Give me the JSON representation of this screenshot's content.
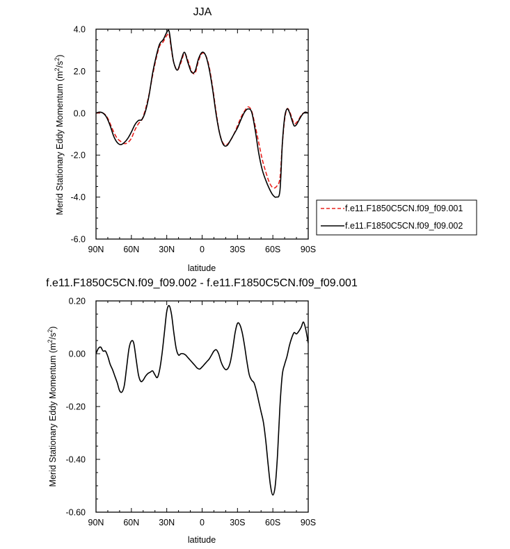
{
  "chart_data": [
    {
      "type": "line",
      "title": "JJA",
      "xlabel": "latitude",
      "ylabel": "Merid Stationary Eddy Momentum (m²/s²)",
      "xlim": [
        90,
        -90
      ],
      "ylim": [
        -6.0,
        4.0
      ],
      "x_ticks": [
        90,
        60,
        30,
        0,
        -30,
        -60,
        -90
      ],
      "x_tick_labels": [
        "90N",
        "60N",
        "30N",
        "0",
        "30S",
        "60S",
        "90S"
      ],
      "y_ticks": [
        4.0,
        2.0,
        0.0,
        -2.0,
        -4.0,
        -6.0
      ],
      "y_tick_labels": [
        "4.0",
        "2.0",
        "0.0",
        "-2.0",
        "-4.0",
        "-6.0"
      ],
      "legend_position": "outside-right",
      "series": [
        {
          "name": "f.e11.F1850C5CN.f09_f09.001",
          "color": "#e8221f",
          "dash": "dashed",
          "x": [
            90,
            87,
            84,
            81,
            78,
            75,
            72,
            69,
            66,
            63,
            60,
            57,
            54,
            51,
            48,
            45,
            42,
            39,
            36,
            33,
            30,
            28,
            26,
            24,
            21,
            18,
            15,
            12,
            9,
            6,
            3,
            0,
            -3,
            -6,
            -9,
            -12,
            -15,
            -18,
            -21,
            -24,
            -27,
            -30,
            -33,
            -36,
            -39,
            -42,
            -45,
            -48,
            -51,
            -54,
            -57,
            -60,
            -63,
            -66,
            -68,
            -70,
            -72,
            -74,
            -76,
            -78,
            -80,
            -82,
            -84,
            -86,
            -88,
            -90
          ],
          "y": [
            0.0,
            0.02,
            0.0,
            -0.15,
            -0.5,
            -0.9,
            -1.2,
            -1.35,
            -1.45,
            -1.4,
            -1.2,
            -0.8,
            -0.5,
            -0.3,
            0.2,
            0.9,
            1.8,
            2.6,
            3.2,
            3.4,
            3.7,
            3.75,
            3.0,
            2.4,
            2.05,
            2.4,
            2.85,
            2.5,
            2.0,
            1.9,
            2.5,
            2.85,
            2.75,
            2.2,
            1.2,
            0.0,
            -1.0,
            -1.45,
            -1.5,
            -1.3,
            -1.0,
            -0.6,
            -0.2,
            0.1,
            0.3,
            0.1,
            -0.6,
            -1.4,
            -2.2,
            -2.8,
            -3.3,
            -3.55,
            -3.5,
            -3.1,
            -1.5,
            -0.3,
            0.2,
            0.1,
            -0.2,
            -0.5,
            -0.45,
            -0.3,
            -0.1,
            0.0,
            0.05,
            0.05
          ]
        },
        {
          "name": "f.e11.F1850C5CN.f09_f09.002",
          "color": "#000000",
          "dash": "solid",
          "x": [
            90,
            87,
            84,
            81,
            78,
            75,
            72,
            69,
            66,
            63,
            60,
            57,
            54,
            51,
            48,
            45,
            42,
            39,
            36,
            33,
            30,
            28,
            26,
            24,
            21,
            18,
            15,
            12,
            9,
            6,
            3,
            0,
            -3,
            -6,
            -9,
            -12,
            -15,
            -18,
            -21,
            -24,
            -27,
            -30,
            -33,
            -36,
            -39,
            -42,
            -45,
            -48,
            -51,
            -54,
            -57,
            -60,
            -63,
            -66,
            -68,
            -70,
            -72,
            -74,
            -76,
            -78,
            -80,
            -82,
            -84,
            -86,
            -88,
            -90
          ],
          "y": [
            0.0,
            0.05,
            0.0,
            -0.2,
            -0.6,
            -1.1,
            -1.4,
            -1.5,
            -1.4,
            -1.2,
            -0.9,
            -0.55,
            -0.35,
            -0.3,
            0.1,
            0.85,
            1.9,
            2.7,
            3.3,
            3.5,
            3.85,
            3.9,
            3.1,
            2.4,
            2.05,
            2.5,
            2.9,
            2.4,
            1.95,
            2.0,
            2.6,
            2.9,
            2.75,
            2.1,
            1.1,
            -0.1,
            -1.0,
            -1.5,
            -1.55,
            -1.3,
            -1.0,
            -0.7,
            -0.3,
            0.05,
            0.2,
            0.05,
            -0.8,
            -1.9,
            -2.7,
            -3.2,
            -3.6,
            -3.9,
            -4.0,
            -3.7,
            -1.5,
            -0.2,
            0.2,
            0.05,
            -0.3,
            -0.6,
            -0.55,
            -0.35,
            -0.15,
            0.0,
            0.05,
            0.0
          ]
        }
      ]
    },
    {
      "type": "line",
      "title": "f.e11.F1850C5CN.f09_f09.002 - f.e11.F1850C5CN.f09_f09.001",
      "xlabel": "latitude",
      "ylabel": "Merid Stationary Eddy Momentum (m²/s²)",
      "xlim": [
        90,
        -90
      ],
      "ylim": [
        -0.6,
        0.2
      ],
      "x_ticks": [
        90,
        60,
        30,
        0,
        -30,
        -60,
        -90
      ],
      "x_tick_labels": [
        "90N",
        "60N",
        "30N",
        "0",
        "30S",
        "60S",
        "90S"
      ],
      "y_ticks": [
        0.2,
        0.0,
        -0.2,
        -0.4,
        -0.6
      ],
      "y_tick_labels": [
        "0.20",
        "0.00",
        "-0.20",
        "-0.40",
        "-0.60"
      ],
      "series": [
        {
          "color": "#000000",
          "dash": "solid",
          "x": [
            90,
            88,
            86,
            84,
            82,
            80,
            78,
            76,
            74,
            72,
            70,
            68,
            66,
            64,
            62,
            60,
            58,
            56,
            54,
            52,
            50,
            48,
            46,
            44,
            42,
            40,
            38,
            36,
            34,
            32,
            30,
            28,
            26,
            24,
            22,
            20,
            18,
            16,
            14,
            12,
            10,
            8,
            6,
            4,
            2,
            0,
            -2,
            -4,
            -6,
            -8,
            -10,
            -12,
            -14,
            -16,
            -18,
            -20,
            -22,
            -24,
            -26,
            -28,
            -30,
            -32,
            -34,
            -36,
            -38,
            -40,
            -42,
            -44,
            -46,
            -48,
            -50,
            -52,
            -54,
            -56,
            -58,
            -60,
            -62,
            -64,
            -66,
            -68,
            -70,
            -72,
            -74,
            -76,
            -78,
            -80,
            -82,
            -84,
            -86,
            -88,
            -90
          ],
          "y": [
            0.0,
            0.02,
            0.025,
            0.01,
            0.01,
            -0.01,
            -0.04,
            -0.06,
            -0.085,
            -0.11,
            -0.14,
            -0.145,
            -0.12,
            -0.05,
            0.02,
            0.048,
            0.04,
            -0.02,
            -0.08,
            -0.105,
            -0.1,
            -0.085,
            -0.075,
            -0.07,
            -0.065,
            -0.08,
            -0.09,
            -0.06,
            0.0,
            0.08,
            0.16,
            0.182,
            0.15,
            0.08,
            0.02,
            -0.005,
            0.0,
            0.0,
            -0.005,
            -0.015,
            -0.025,
            -0.035,
            -0.045,
            -0.055,
            -0.058,
            -0.05,
            -0.04,
            -0.03,
            -0.02,
            -0.005,
            0.01,
            0.015,
            0.0,
            -0.03,
            -0.05,
            -0.06,
            -0.055,
            -0.03,
            0.02,
            0.08,
            0.115,
            0.11,
            0.08,
            0.03,
            -0.03,
            -0.08,
            -0.1,
            -0.11,
            -0.14,
            -0.18,
            -0.22,
            -0.26,
            -0.33,
            -0.42,
            -0.5,
            -0.535,
            -0.5,
            -0.38,
            -0.2,
            -0.08,
            -0.04,
            -0.01,
            0.03,
            0.06,
            0.08,
            0.075,
            0.085,
            0.1,
            0.12,
            0.09,
            0.04
          ]
        }
      ]
    }
  ]
}
